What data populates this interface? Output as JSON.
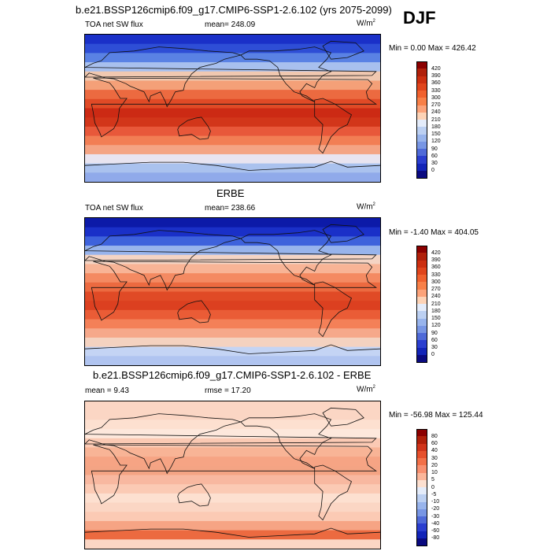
{
  "season": "DJF",
  "panels": [
    {
      "title": "b.e21.BSSP126cmip6.f09_g17.CMIP6-SSP1-2.6.102 (yrs 2075-2099)",
      "left_label": "TOA net SW flux",
      "center_label": "mean= 248.09",
      "units_main": "W/m",
      "units_sup": "2",
      "minmax": "Min =   0.00 Max = 426.42",
      "colorbar_labels": [
        "420",
        "390",
        "360",
        "330",
        "300",
        "270",
        "240",
        "210",
        "180",
        "150",
        "120",
        "90",
        "60",
        "30",
        "0"
      ],
      "colorbar_colors": [
        "#8b0000",
        "#b0200a",
        "#cc2f10",
        "#e0451c",
        "#f0612e",
        "#f88048",
        "#fca37a",
        "#fdd3b6",
        "#e4ecfa",
        "#bcd0f2",
        "#98b4ec",
        "#7896e4",
        "#4f6ad8",
        "#2a3ecf",
        "#1224b8",
        "#0a0a80"
      ],
      "band_colors": [
        "#1a30c8",
        "#2e4ed6",
        "#5a82e4",
        "#a8c0ee",
        "#f0c8b0",
        "#f4a078",
        "#ec6a40",
        "#e04a26",
        "#cc2a14",
        "#d2361a",
        "#e8583a",
        "#f27e54",
        "#f4a484",
        "#e8e4f0",
        "#aac2ee",
        "#90aaea"
      ],
      "land_paths": []
    },
    {
      "title": "ERBE",
      "left_label": "TOA net SW flux",
      "center_label": "mean= 238.66",
      "units_main": "W/m",
      "units_sup": "2",
      "minmax": "Min =  -1.40 Max = 404.05",
      "colorbar_labels": [
        "420",
        "390",
        "360",
        "330",
        "300",
        "270",
        "240",
        "210",
        "180",
        "150",
        "120",
        "90",
        "60",
        "30",
        "0"
      ],
      "colorbar_colors": [
        "#8b0000",
        "#b0200a",
        "#cc2f10",
        "#e0451c",
        "#f0612e",
        "#f88048",
        "#fca37a",
        "#fdd3b6",
        "#e4ecfa",
        "#bcd0f2",
        "#98b4ec",
        "#7896e4",
        "#4f6ad8",
        "#2a3ecf",
        "#1224b8",
        "#0a0a80"
      ],
      "band_colors": [
        "#0c1aa8",
        "#1a30c8",
        "#3e62dc",
        "#98b4ec",
        "#f4d4c4",
        "#f8b496",
        "#f48a62",
        "#ec6a40",
        "#e04a26",
        "#dc4020",
        "#ea5c36",
        "#f48058",
        "#f6a88a",
        "#f4d2c0",
        "#c4d4f4",
        "#b0c4f0"
      ],
      "land_paths": []
    },
    {
      "title": "b.e21.BSSP126cmip6.f09_g17.CMIP6-SSP1-2.6.102 - ERBE",
      "left_label": "mean =   9.43",
      "center_label": "rmse =  17.20",
      "units_main": "W/m",
      "units_sup": "2",
      "minmax": "Min = -56.98 Max = 125.44",
      "colorbar_labels": [
        "80",
        "60",
        "40",
        "30",
        "20",
        "10",
        "5",
        "0",
        "-5",
        "-10",
        "-20",
        "-30",
        "-40",
        "-60",
        "-80"
      ],
      "colorbar_colors": [
        "#8b0000",
        "#b0200a",
        "#d0341a",
        "#e6502c",
        "#f27048",
        "#f89070",
        "#fbb69a",
        "#fde0d0",
        "#e4ecfa",
        "#bcd0f2",
        "#98b4ec",
        "#7896e4",
        "#4f6ad8",
        "#2a3ecf",
        "#1224b8",
        "#0a0a80"
      ],
      "band_colors": [
        "#fbd6c4",
        "#fbd6c4",
        "#fde0d0",
        "#fde8dc",
        "#fbcab4",
        "#f8b496",
        "#f6a484",
        "#f4a484",
        "#f8b8a0",
        "#fbcab4",
        "#fde0d0",
        "#fbd6c4",
        "#fbcab4",
        "#f6a484",
        "#ec6a40",
        "#fbd6c4"
      ]
    }
  ]
}
